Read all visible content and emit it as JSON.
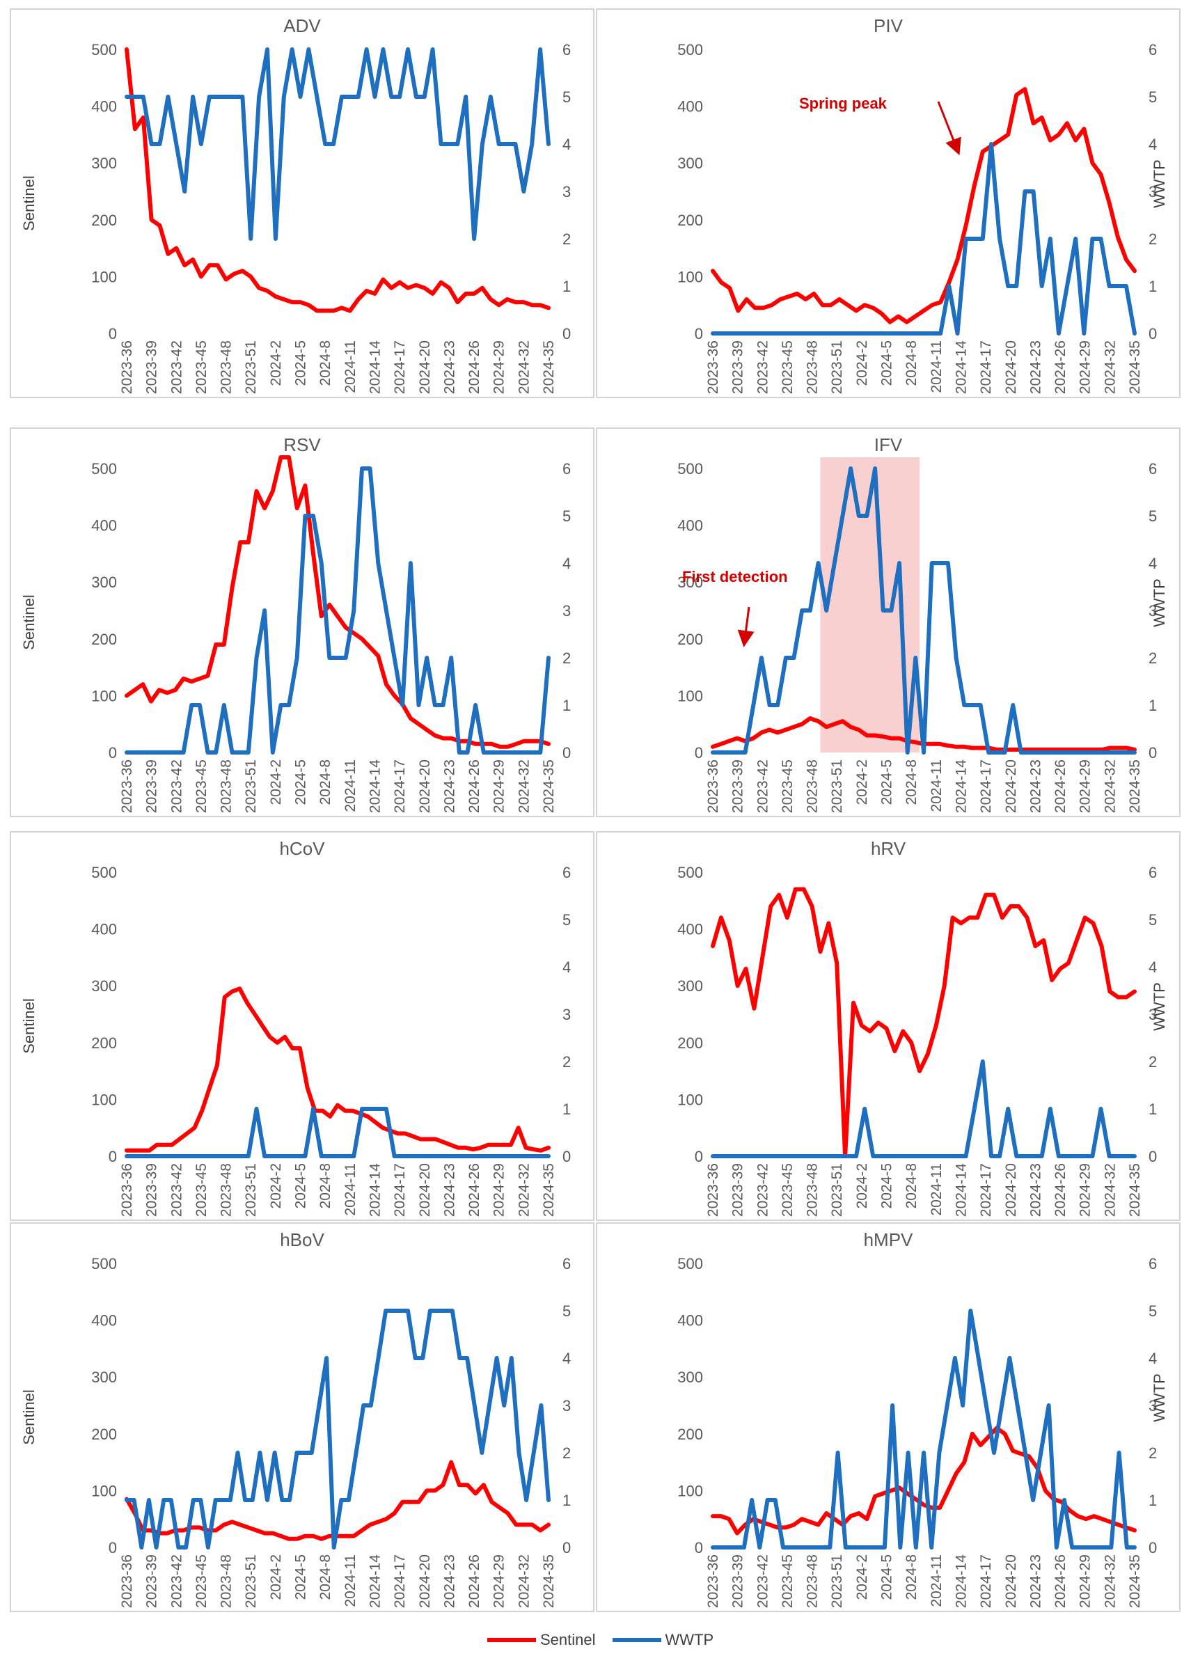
{
  "legend": {
    "sentinel": "Sentinel",
    "wwtp": "WWTP"
  },
  "colors": {
    "sentinel": "#ff0000",
    "wwtp": "#1f6fc0",
    "highlight": "#f8c8c8"
  },
  "annotations": {
    "spring_peak": "Spring peak",
    "first_detection": "First detection"
  },
  "chart_data": [
    {
      "type": "line",
      "title": "ADV",
      "ylabel_left": "Sentinel",
      "ylabel_right": "",
      "ylim": [
        0,
        500
      ],
      "y2lim": [
        0,
        6
      ],
      "sentinel": [
        500,
        360,
        380,
        200,
        190,
        140,
        150,
        120,
        130,
        100,
        120,
        120,
        95,
        105,
        110,
        100,
        80,
        75,
        65,
        60,
        55,
        55,
        50,
        40,
        40,
        40,
        45,
        40,
        60,
        75,
        70,
        95,
        80,
        90,
        80,
        85,
        80,
        70,
        90,
        80,
        55,
        70,
        70,
        80,
        60,
        50,
        60,
        55,
        55,
        50,
        50,
        45
      ],
      "wwtp": [
        5,
        5,
        5,
        4,
        4,
        5,
        4,
        3,
        5,
        4,
        5,
        5,
        5,
        5,
        5,
        2,
        5,
        6,
        2,
        5,
        6,
        5,
        6,
        5,
        4,
        4,
        5,
        5,
        5,
        6,
        5,
        6,
        5,
        5,
        6,
        5,
        5,
        6,
        4,
        4,
        4,
        5,
        2,
        4,
        5,
        4,
        4,
        4,
        3,
        4,
        6,
        4
      ]
    },
    {
      "type": "line",
      "title": "PIV",
      "ylabel_left": "",
      "ylabel_right": "WWTP",
      "ylim": [
        0,
        500
      ],
      "y2lim": [
        0,
        6
      ],
      "sentinel": [
        110,
        90,
        80,
        40,
        60,
        45,
        45,
        50,
        60,
        65,
        70,
        60,
        70,
        50,
        50,
        60,
        50,
        40,
        50,
        45,
        35,
        20,
        30,
        20,
        30,
        40,
        50,
        55,
        90,
        130,
        190,
        260,
        320,
        330,
        340,
        350,
        420,
        430,
        370,
        380,
        340,
        350,
        370,
        340,
        360,
        300,
        280,
        230,
        170,
        130,
        110
      ],
      "wwtp": [
        0,
        0,
        0,
        0,
        0,
        0,
        0,
        0,
        0,
        0,
        0,
        0,
        0,
        0,
        0,
        0,
        0,
        0,
        0,
        0,
        0,
        0,
        0,
        0,
        0,
        0,
        0,
        0,
        1,
        0,
        2,
        2,
        2,
        4,
        2,
        1,
        1,
        3,
        3,
        1,
        2,
        0,
        1,
        2,
        0,
        2,
        2,
        1,
        1,
        1,
        0
      ]
    },
    {
      "type": "line",
      "title": "RSV",
      "ylabel_left": "Sentinel",
      "ylabel_right": "",
      "ylim": [
        0,
        500
      ],
      "y2lim": [
        0,
        6
      ],
      "sentinel": [
        100,
        110,
        120,
        90,
        110,
        105,
        110,
        130,
        125,
        130,
        135,
        190,
        190,
        290,
        370,
        370,
        460,
        430,
        460,
        520,
        560,
        430,
        470,
        350,
        240,
        260,
        240,
        220,
        210,
        200,
        185,
        170,
        120,
        100,
        85,
        60,
        50,
        40,
        30,
        25,
        25,
        20,
        20,
        15,
        15,
        15,
        10,
        10,
        15,
        20,
        20,
        20,
        15
      ],
      "wwtp": [
        0,
        0,
        0,
        0,
        0,
        0,
        0,
        0,
        1,
        1,
        0,
        0,
        1,
        0,
        0,
        0,
        2,
        3,
        0,
        1,
        1,
        2,
        5,
        5,
        4,
        2,
        2,
        2,
        3,
        6,
        6,
        4,
        3,
        2,
        1,
        4,
        1,
        2,
        1,
        1,
        2,
        0,
        0,
        1,
        0,
        0,
        0,
        0,
        0,
        0,
        0,
        0,
        2
      ]
    },
    {
      "type": "line",
      "title": "IFV",
      "ylabel_left": "",
      "ylabel_right": "WWTP",
      "ylim": [
        0,
        500
      ],
      "y2lim": [
        0,
        6
      ],
      "highlight_range": [
        "2023-49",
        "2024-9"
      ],
      "sentinel": [
        10,
        15,
        20,
        25,
        20,
        25,
        35,
        40,
        35,
        40,
        45,
        50,
        60,
        55,
        45,
        50,
        55,
        45,
        40,
        30,
        30,
        28,
        25,
        25,
        20,
        18,
        15,
        15,
        15,
        12,
        10,
        10,
        8,
        8,
        8,
        5,
        5,
        5,
        5,
        5,
        5,
        5,
        5,
        5,
        5,
        5,
        5,
        5,
        5,
        8,
        8,
        8,
        5
      ],
      "wwtp": [
        0,
        0,
        0,
        0,
        0,
        1,
        2,
        1,
        1,
        2,
        2,
        3,
        3,
        4,
        3,
        4,
        5,
        6,
        5,
        5,
        6,
        3,
        3,
        4,
        0,
        2,
        0,
        4,
        4,
        4,
        2,
        1,
        1,
        1,
        0,
        0,
        0,
        1,
        0,
        0,
        0,
        0,
        0,
        0,
        0,
        0,
        0,
        0,
        0,
        0,
        0,
        0,
        0
      ]
    },
    {
      "type": "line",
      "title": "hCoV",
      "ylabel_left": "Sentinel",
      "ylabel_right": "",
      "ylim": [
        0,
        500
      ],
      "y2lim": [
        0,
        6
      ],
      "sentinel": [
        10,
        10,
        10,
        10,
        20,
        20,
        20,
        30,
        40,
        50,
        80,
        120,
        160,
        280,
        290,
        295,
        270,
        250,
        230,
        210,
        200,
        210,
        190,
        190,
        120,
        80,
        80,
        70,
        90,
        80,
        80,
        75,
        70,
        60,
        50,
        45,
        40,
        40,
        35,
        30,
        30,
        30,
        25,
        20,
        15,
        15,
        12,
        15,
        20,
        20,
        20,
        20,
        50,
        15,
        12,
        10,
        15
      ],
      "wwtp": [
        0,
        0,
        0,
        0,
        0,
        0,
        0,
        0,
        0,
        0,
        0,
        0,
        0,
        0,
        0,
        0,
        1,
        0,
        0,
        0,
        0,
        0,
        0,
        1,
        0,
        0,
        0,
        0,
        0,
        1,
        1,
        1,
        1,
        0,
        0,
        0,
        0,
        0,
        0,
        0,
        0,
        0,
        0,
        0,
        0,
        0,
        0,
        0,
        0,
        0,
        0,
        0,
        0
      ]
    },
    {
      "type": "line",
      "title": "hRV",
      "ylabel_left": "",
      "ylabel_right": "WWTP",
      "ylim": [
        0,
        500
      ],
      "y2lim": [
        0,
        6
      ],
      "sentinel": [
        370,
        420,
        380,
        300,
        330,
        260,
        350,
        440,
        460,
        420,
        470,
        470,
        440,
        360,
        410,
        340,
        0,
        270,
        230,
        220,
        235,
        225,
        185,
        220,
        200,
        150,
        180,
        230,
        300,
        420,
        410,
        420,
        420,
        460,
        460,
        420,
        440,
        440,
        420,
        370,
        380,
        310,
        330,
        340,
        380,
        420,
        410,
        370,
        290,
        280,
        280,
        290
      ],
      "wwtp": [
        0,
        0,
        0,
        0,
        0,
        0,
        0,
        0,
        0,
        0,
        0,
        0,
        0,
        0,
        0,
        0,
        0,
        0,
        1,
        0,
        0,
        0,
        0,
        0,
        0,
        0,
        0,
        0,
        0,
        0,
        0,
        1,
        2,
        0,
        0,
        1,
        0,
        0,
        0,
        0,
        1,
        0,
        0,
        0,
        0,
        0,
        1,
        0,
        0,
        0,
        0
      ]
    },
    {
      "type": "line",
      "title": "hBoV",
      "ylabel_left": "Sentinel",
      "ylabel_right": "",
      "ylim": [
        0,
        500
      ],
      "y2lim": [
        0,
        6
      ],
      "sentinel": [
        85,
        60,
        30,
        30,
        25,
        25,
        30,
        30,
        35,
        35,
        30,
        30,
        40,
        45,
        40,
        35,
        30,
        25,
        25,
        20,
        15,
        15,
        20,
        20,
        15,
        20,
        20,
        20,
        20,
        30,
        40,
        45,
        50,
        60,
        80,
        80,
        80,
        100,
        100,
        110,
        150,
        110,
        110,
        95,
        110,
        80,
        70,
        60,
        40,
        40,
        40,
        30,
        40
      ],
      "wwtp": [
        1,
        1,
        0,
        1,
        0,
        1,
        1,
        0,
        0,
        1,
        1,
        0,
        1,
        1,
        1,
        2,
        1,
        1,
        2,
        1,
        2,
        1,
        1,
        2,
        2,
        2,
        3,
        4,
        0,
        1,
        1,
        2,
        3,
        3,
        4,
        5,
        5,
        5,
        5,
        4,
        4,
        5,
        5,
        5,
        5,
        4,
        4,
        3,
        2,
        3,
        4,
        3,
        4,
        2,
        1,
        2,
        3,
        1
      ]
    },
    {
      "type": "line",
      "title": "hMPV",
      "ylabel_left": "",
      "ylabel_right": "WWTP",
      "ylim": [
        0,
        500
      ],
      "y2lim": [
        0,
        6
      ],
      "sentinel": [
        55,
        55,
        50,
        25,
        40,
        50,
        45,
        40,
        35,
        35,
        40,
        50,
        45,
        40,
        60,
        50,
        40,
        55,
        60,
        50,
        90,
        95,
        100,
        105,
        95,
        85,
        75,
        70,
        70,
        100,
        130,
        150,
        200,
        180,
        195,
        210,
        200,
        170,
        165,
        160,
        140,
        100,
        85,
        80,
        65,
        55,
        50,
        55,
        50,
        45,
        40,
        35,
        30
      ],
      "wwtp": [
        0,
        0,
        0,
        0,
        0,
        1,
        0,
        1,
        1,
        0,
        0,
        0,
        0,
        0,
        0,
        0,
        2,
        0,
        0,
        0,
        0,
        0,
        0,
        3,
        0,
        2,
        0,
        2,
        0,
        2,
        3,
        4,
        3,
        5,
        4,
        3,
        2,
        3,
        4,
        3,
        2,
        1,
        2,
        3,
        0,
        1,
        0,
        0,
        0,
        0,
        0,
        0,
        2,
        0,
        0
      ]
    }
  ],
  "x_ticks": [
    "2023-36",
    "2023-39",
    "2023-42",
    "2023-45",
    "2023-48",
    "2023-51",
    "2024-2",
    "2024-5",
    "2024-8",
    "2024-11",
    "2024-14",
    "2024-17",
    "2024-20",
    "2024-23",
    "2024-26",
    "2024-29",
    "2024-32",
    "2024-35"
  ],
  "y_ticks_left": [
    "0",
    "100",
    "200",
    "300",
    "400",
    "500"
  ],
  "y_ticks_right": [
    "0",
    "1",
    "2",
    "3",
    "4",
    "5",
    "6"
  ]
}
